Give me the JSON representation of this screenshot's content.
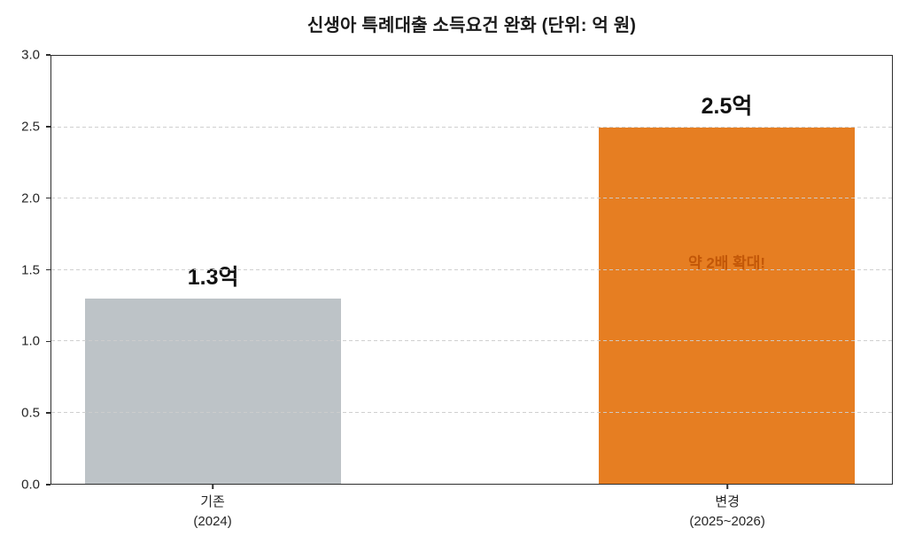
{
  "title": "신생아 특례대출 소득요건 완화 (단위: 억 원)",
  "colors": {
    "background": "#ffffff",
    "spine": "#2e2e2e",
    "gridline": "#cdcdcd",
    "bar_gray": "#bdc3c7",
    "bar_orange": "#e67e22",
    "annotation_text": "#c25708",
    "value_label_text": "#111111",
    "tick_text": "#262626"
  },
  "chart_data": {
    "type": "bar",
    "title": "신생아 특례대출 소득요건 완화 (단위: 억 원)",
    "categories": [
      "기존\n(2024)",
      "변경\n(2025~2026)"
    ],
    "values": [
      1.3,
      2.5
    ],
    "bars": [
      {
        "category_line1": "기존",
        "category_line2": "(2024)",
        "value": 1.3,
        "value_label": "1.3억",
        "color": "#bdc3c7"
      },
      {
        "category_line1": "변경",
        "category_line2": "(2025~2026)",
        "value": 2.5,
        "value_label": "2.5억",
        "color": "#e67e22"
      }
    ],
    "annotations": [
      {
        "text": "약 2배 확대!",
        "bar_index": 1,
        "y_value": 1.56,
        "color": "#c25708"
      }
    ],
    "xlabel": "",
    "ylabel": "",
    "ylim": [
      0,
      3.0
    ],
    "ytick_step": 0.5,
    "ytick_labels": [
      "0.0",
      "0.5",
      "1.0",
      "1.5",
      "2.0",
      "2.5",
      "3.0"
    ],
    "grid": "horizontal dashed, drawn above bars",
    "legend": "none"
  }
}
